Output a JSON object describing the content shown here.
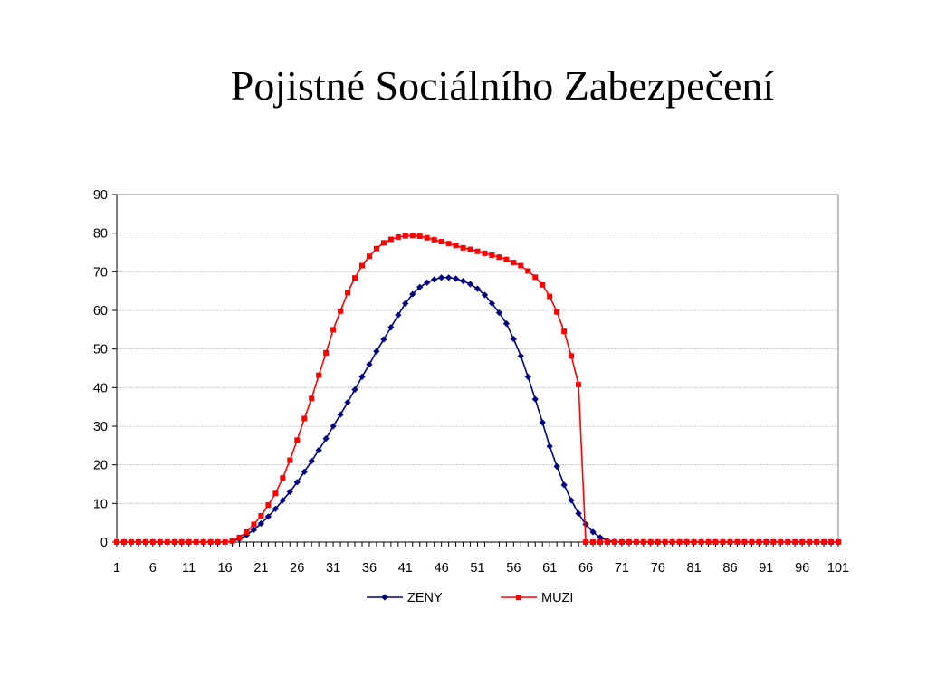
{
  "slide": {
    "title": "Pojistné Sociálního Zabezpečení"
  },
  "chart_data": {
    "type": "line",
    "title": "",
    "xlabel": "",
    "ylabel": "",
    "grid": true,
    "legend_position": "bottom",
    "ylim": [
      0,
      90
    ],
    "yticks": [
      0,
      10,
      20,
      30,
      40,
      50,
      60,
      70,
      80,
      90
    ],
    "xticks": [
      "1",
      "6",
      "11",
      "16",
      "21",
      "26",
      "31",
      "36",
      "41",
      "46",
      "51",
      "56",
      "61",
      "66",
      "71",
      "76",
      "81",
      "86",
      "91",
      "96",
      "101"
    ],
    "x_start": 1,
    "x_end": 101,
    "series": [
      {
        "name": "ZENY",
        "color": "#000080",
        "marker": "diamond",
        "values": [
          0,
          0,
          0,
          0,
          0,
          0,
          0,
          0,
          0,
          0,
          0,
          0,
          0,
          0,
          0,
          0,
          0.2,
          0.8,
          1.8,
          3.2,
          4.8,
          6.6,
          8.6,
          10.8,
          13,
          15.5,
          18.2,
          21,
          23.8,
          26.8,
          30,
          33,
          36.2,
          39.5,
          42.8,
          46,
          49.4,
          52.5,
          55.6,
          58.8,
          61.8,
          64.2,
          66,
          67.2,
          68,
          68.5,
          68.5,
          68.2,
          67.6,
          66.8,
          65.6,
          64,
          61.8,
          59.4,
          56.6,
          52.6,
          48.2,
          42.8,
          37,
          31,
          24.8,
          19.6,
          14.8,
          10.8,
          7.4,
          4.6,
          2.6,
          1.2,
          0.4,
          0.1,
          0,
          0,
          0,
          0,
          0,
          0,
          0,
          0,
          0,
          0,
          0,
          0,
          0,
          0,
          0,
          0,
          0,
          0,
          0,
          0,
          0,
          0,
          0,
          0,
          0,
          0,
          0,
          0,
          0,
          0,
          0
        ]
      },
      {
        "name": "MUZI",
        "color": "#ff0000",
        "marker": "square",
        "values": [
          0,
          0,
          0,
          0,
          0,
          0,
          0,
          0,
          0,
          0,
          0,
          0,
          0,
          0,
          0,
          0,
          0.3,
          1.2,
          2.6,
          4.6,
          6.8,
          9.6,
          12.6,
          16.6,
          21.2,
          26.4,
          32,
          37.2,
          43.2,
          49,
          55,
          59.8,
          64.6,
          68.4,
          71.6,
          74,
          76,
          77.5,
          78.4,
          79,
          79.3,
          79.4,
          79.2,
          78.8,
          78.3,
          77.8,
          77.3,
          76.8,
          76.2,
          75.8,
          75.3,
          74.8,
          74.3,
          73.8,
          73.2,
          72.4,
          71.6,
          70.2,
          68.6,
          66.6,
          63.6,
          59.6,
          54.6,
          48.2,
          40.8,
          0,
          0,
          0,
          0,
          0,
          0,
          0,
          0,
          0,
          0,
          0,
          0,
          0,
          0,
          0,
          0,
          0,
          0,
          0,
          0,
          0,
          0,
          0,
          0,
          0,
          0,
          0,
          0,
          0,
          0,
          0,
          0,
          0,
          0,
          0,
          0
        ]
      }
    ]
  }
}
